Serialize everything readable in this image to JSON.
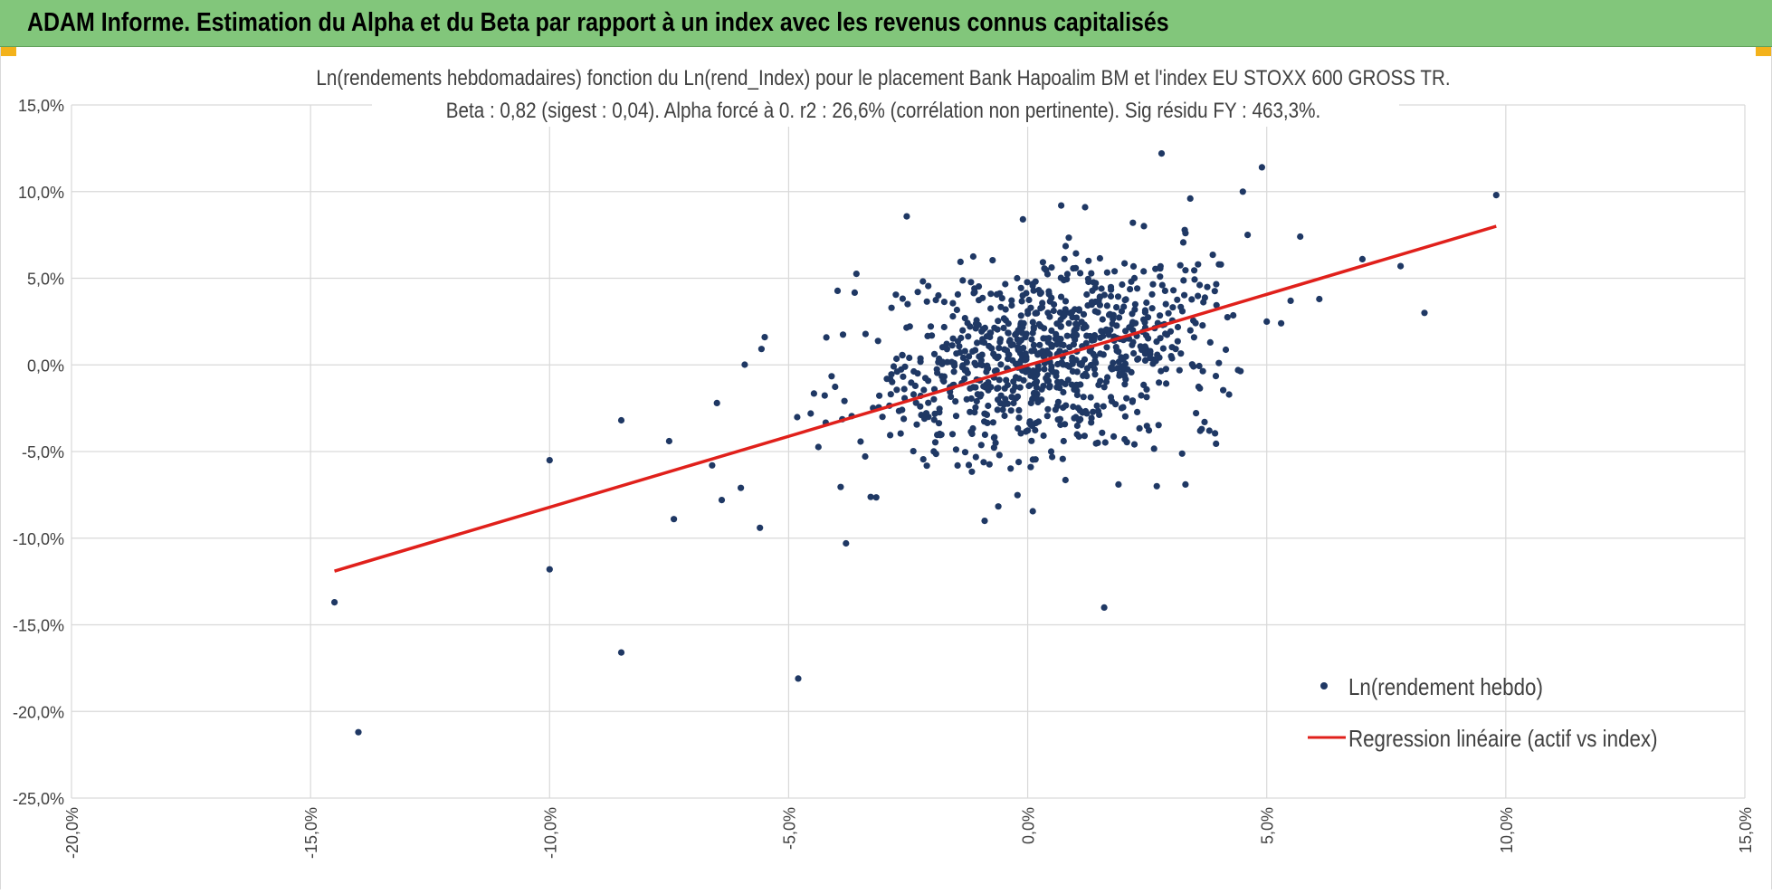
{
  "header": {
    "title": "ADAM Informe. Estimation du Alpha et du Beta par rapport à un index avec les revenus connus capitalisés"
  },
  "colors": {
    "header_bg": "#82c67b",
    "points": "#1f3864",
    "regression": "#e0201b",
    "grid": "#d9d9d9",
    "corner_accent": "#f3b21b"
  },
  "chart_data": {
    "type": "scatter",
    "title": "Ln(rendements hebdomadaires) fonction du Ln(rend_Index) pour le placement Bank Hapoalim BM et l'index EU STOXX 600 GROSS TR.",
    "subtitle": "Beta : 0,82 (sigest : 0,04).  Alpha forcé à 0. r2 : 26,6% (corrélation non pertinente). Sig résidu FY : 463,3%.",
    "xlabel": "",
    "ylabel": "",
    "xlim": [
      -0.2,
      0.15
    ],
    "ylim": [
      -0.25,
      0.15
    ],
    "x_ticks": [
      -0.2,
      -0.15,
      -0.1,
      -0.05,
      0.0,
      0.05,
      0.1,
      0.15
    ],
    "y_ticks": [
      0.15,
      0.1,
      0.05,
      0.0,
      -0.05,
      -0.1,
      -0.15,
      -0.2,
      -0.25
    ],
    "x_tick_labels": [
      "-20,0%",
      "-15,0%",
      "-10,0%",
      "-5,0%",
      "0,0%",
      "5,0%",
      "10,0%",
      "15,0%"
    ],
    "y_tick_labels": [
      "15,0%",
      "10,0%",
      "5,0%",
      "0,0%",
      "-5,0%",
      "-10,0%",
      "-15,0%",
      "-20,0%",
      "-25,0%"
    ],
    "grid": true,
    "legend_position": "bottom-right",
    "series": [
      {
        "name": "Ln(rendement hebdo)",
        "type": "scatter",
        "color": "#1f3864",
        "outliers": [
          [
            -0.145,
            -0.137
          ],
          [
            -0.14,
            -0.212
          ],
          [
            -0.1,
            -0.055
          ],
          [
            -0.1,
            -0.118
          ],
          [
            -0.085,
            -0.032
          ],
          [
            -0.085,
            -0.166
          ],
          [
            -0.075,
            -0.044
          ],
          [
            -0.074,
            -0.089
          ],
          [
            -0.048,
            -0.181
          ],
          [
            -0.038,
            -0.103
          ],
          [
            -0.055,
            0.016
          ],
          [
            -0.065,
            -0.022
          ],
          [
            -0.064,
            -0.078
          ],
          [
            -0.056,
            -0.094
          ],
          [
            0.016,
            -0.14
          ],
          [
            0.028,
            0.122
          ],
          [
            0.049,
            0.114
          ],
          [
            0.045,
            0.1
          ],
          [
            0.034,
            0.096
          ],
          [
            0.098,
            0.098
          ],
          [
            0.057,
            0.074
          ],
          [
            0.046,
            0.075
          ],
          [
            0.07,
            0.061
          ],
          [
            0.078,
            0.057
          ],
          [
            0.061,
            0.038
          ],
          [
            0.083,
            0.03
          ],
          [
            0.053,
            0.024
          ],
          [
            0.05,
            0.025
          ],
          [
            0.055,
            0.037
          ],
          [
            0.04,
            0.058
          ],
          [
            0.033,
            -0.069
          ],
          [
            0.027,
            -0.07
          ],
          [
            0.019,
            -0.069
          ],
          [
            0.037,
            -0.033
          ],
          [
            0.038,
            -0.038
          ],
          [
            0.044,
            -0.003
          ],
          [
            0.033,
            0.076
          ],
          [
            0.012,
            0.091
          ],
          [
            0.007,
            0.092
          ],
          [
            -0.001,
            0.084
          ],
          [
            0.022,
            0.082
          ],
          [
            -0.009,
            -0.09
          ],
          [
            -0.066,
            -0.058
          ],
          [
            -0.06,
            -0.071
          ]
        ],
        "cloud": {
          "count": 900,
          "center": [
            0.004,
            0.004
          ],
          "std": [
            0.019,
            0.027
          ],
          "beta": 0.82,
          "seed": 20240611
        }
      },
      {
        "name": "Regression linéaire (actif vs index)",
        "type": "line",
        "color": "#e0201b",
        "points": [
          [
            -0.145,
            -0.119
          ],
          [
            0.098,
            0.08
          ]
        ]
      }
    ]
  }
}
